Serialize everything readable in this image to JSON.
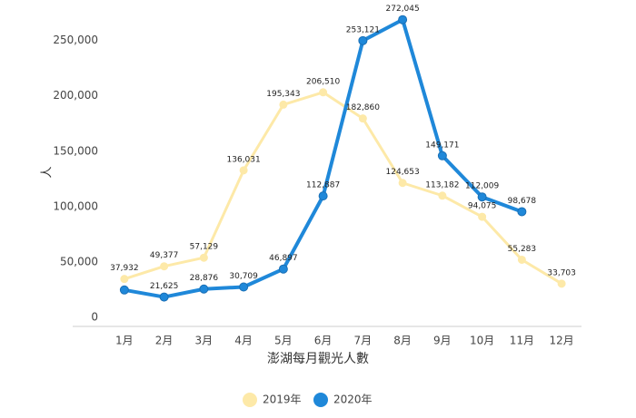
{
  "chart_data": {
    "type": "line",
    "x_label": "澎湖每月觀光人數",
    "y_label": "人",
    "categories": [
      "1月",
      "2月",
      "3月",
      "4月",
      "5月",
      "6月",
      "7月",
      "8月",
      "9月",
      "10月",
      "11月",
      "12月"
    ],
    "series": [
      {
        "name": "2019年",
        "color": "#fde9a8",
        "values": [
          37932,
          49377,
          57129,
          136031,
          195343,
          206510,
          182860,
          124653,
          113182,
          94075,
          55283,
          33703
        ],
        "value_labels": [
          "37,932",
          "49,377",
          "57,129",
          "136,031",
          "195,343",
          "206,510",
          "182,860",
          "124,653",
          "113,182",
          "94,075",
          "55,283",
          "33,703"
        ]
      },
      {
        "name": "2020年",
        "color": "#1f88d9",
        "values": [
          28000,
          21625,
          28876,
          30709,
          46897,
          112887,
          253121,
          272045,
          149171,
          112009,
          98678,
          null
        ],
        "value_labels": [
          null,
          "21,625",
          "28,876",
          "30,709",
          "46,897",
          "112,887",
          "253,121",
          "272,045",
          "149,171",
          "112,009",
          "98,678",
          null
        ]
      }
    ],
    "ylim": [
      0,
      280000
    ],
    "yticks": [
      0,
      {
        "value": 50000,
        "label": "50,000"
      },
      {
        "value": 100000,
        "label": "100,000"
      },
      {
        "value": 150000,
        "label": "150,000"
      },
      {
        "value": 200000,
        "label": "200,000"
      },
      {
        "value": 250000,
        "label": "250,000"
      }
    ],
    "legend": "bottom"
  }
}
